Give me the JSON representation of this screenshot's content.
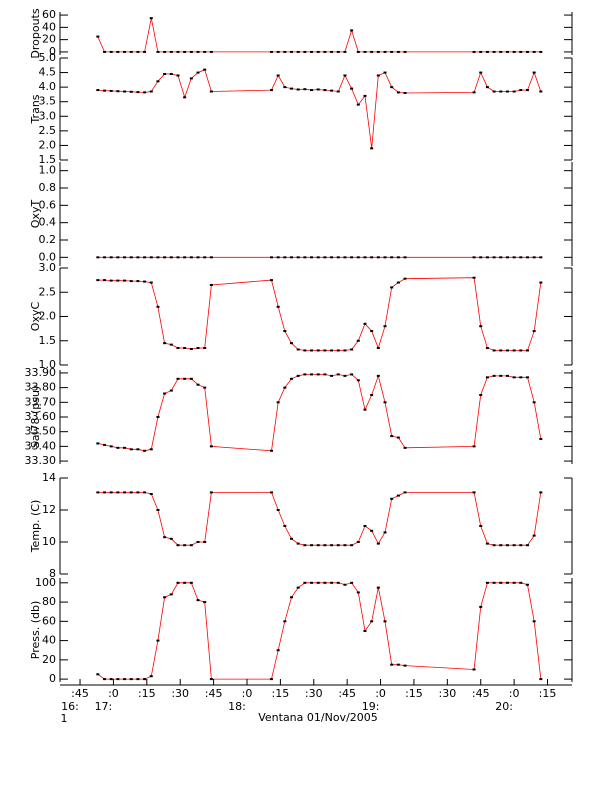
{
  "chart_data": {
    "type": "line",
    "line_color": "#ff0000",
    "point_color": "#000000",
    "xlabel": "Ventana 01/Nov/2005",
    "xlim": [
      36,
      266
    ],
    "xticks": [
      {
        "value": 45,
        "label": ":45"
      },
      {
        "value": 60,
        "label": ":0"
      },
      {
        "value": 75,
        "label": ":15"
      },
      {
        "value": 90,
        "label": ":30"
      },
      {
        "value": 105,
        "label": ":45"
      },
      {
        "value": 120,
        "label": ":0"
      },
      {
        "value": 135,
        "label": ":15"
      },
      {
        "value": 150,
        "label": ":30"
      },
      {
        "value": 165,
        "label": ":45"
      },
      {
        "value": 180,
        "label": ":0"
      },
      {
        "value": 195,
        "label": ":15"
      },
      {
        "value": 210,
        "label": ":30"
      },
      {
        "value": 225,
        "label": ":45"
      },
      {
        "value": 240,
        "label": ":0"
      },
      {
        "value": 255,
        "label": ":15"
      }
    ],
    "hour_labels": [
      {
        "value": 45,
        "label": "16:"
      },
      {
        "value": 60,
        "label": "17:"
      },
      {
        "value": 120,
        "label": "18:"
      },
      {
        "value": 180,
        "label": "19:"
      },
      {
        "value": 240,
        "label": "20:"
      }
    ],
    "day_label": {
      "value": 45,
      "label": "1"
    },
    "x": [
      53,
      56,
      59,
      62,
      65,
      68,
      71,
      74,
      77,
      80,
      83,
      86,
      89,
      92,
      95,
      98,
      101,
      104,
      131,
      134,
      137,
      140,
      143,
      146,
      149,
      152,
      155,
      158,
      161,
      164,
      167,
      170,
      173,
      176,
      179,
      182,
      185,
      188,
      191,
      222,
      225,
      228,
      231,
      234,
      237,
      240,
      243,
      246,
      249,
      252
    ],
    "panels": [
      {
        "ylabel": "Dropouts",
        "ylim": [
          -5,
          65
        ],
        "yticks": [
          0,
          20,
          40,
          60
        ],
        "values": [
          25,
          0,
          0,
          0,
          0,
          0,
          0,
          0,
          55,
          0,
          0,
          0,
          0,
          0,
          0,
          0,
          0,
          0,
          0,
          0,
          0,
          0,
          0,
          0,
          0,
          0,
          0,
          0,
          0,
          0,
          35,
          0,
          0,
          0,
          0,
          0,
          0,
          0,
          0,
          0,
          0,
          0,
          0,
          0,
          0,
          0,
          0,
          0,
          0,
          0
        ]
      },
      {
        "ylabel": "Trans",
        "ylim": [
          1.5,
          5.0
        ],
        "yticks": [
          1.5,
          {
            "value": 2,
            "label": "2.0"
          },
          2.5,
          {
            "value": 3,
            "label": "3.0"
          },
          3.5,
          {
            "value": 4,
            "label": "4.0"
          },
          4.5,
          {
            "value": 5,
            "label": "5.0"
          }
        ],
        "values": [
          3.9,
          3.88,
          3.87,
          3.86,
          3.85,
          3.84,
          3.83,
          3.82,
          3.85,
          4.2,
          4.45,
          4.45,
          4.4,
          3.65,
          4.3,
          4.5,
          4.6,
          3.85,
          3.9,
          4.4,
          4.0,
          3.95,
          3.92,
          3.93,
          3.9,
          3.92,
          3.9,
          3.88,
          3.85,
          4.4,
          3.95,
          3.4,
          3.7,
          1.9,
          4.4,
          4.5,
          4.0,
          3.82,
          3.8,
          3.82,
          4.5,
          4.0,
          3.85,
          3.85,
          3.85,
          3.85,
          3.9,
          3.9,
          4.5,
          3.85
        ]
      },
      {
        "ylabel": "OxyT",
        "ylim": [
          -0.1,
          1.1
        ],
        "yticks": [
          {
            "value": 0,
            "label": "0.0"
          },
          0.2,
          0.4,
          0.6,
          0.8,
          {
            "value": 1,
            "label": "1.0"
          }
        ],
        "values": [
          0,
          0,
          0,
          0,
          0,
          0,
          0,
          0,
          0,
          0,
          0,
          0,
          0,
          0,
          0,
          0,
          0,
          0,
          0,
          0,
          0,
          0,
          0,
          0,
          0,
          0,
          0,
          0,
          0,
          0,
          0,
          0,
          0,
          0,
          0,
          0,
          0,
          0,
          0,
          0,
          0,
          0,
          0,
          0,
          0,
          0,
          0,
          0,
          0,
          0
        ]
      },
      {
        "ylabel": "OxyC",
        "ylim": [
          1.0,
          3.0
        ],
        "yticks": [
          {
            "value": 1,
            "label": "1.0"
          },
          1.5,
          {
            "value": 2,
            "label": "2.0"
          },
          2.5,
          {
            "value": 3,
            "label": "3.0"
          }
        ],
        "values": [
          2.75,
          2.75,
          2.74,
          2.74,
          2.74,
          2.73,
          2.73,
          2.72,
          2.7,
          2.2,
          1.45,
          1.42,
          1.35,
          1.35,
          1.33,
          1.35,
          1.35,
          2.65,
          2.75,
          2.2,
          1.7,
          1.45,
          1.32,
          1.3,
          1.3,
          1.3,
          1.3,
          1.3,
          1.3,
          1.3,
          1.32,
          1.5,
          1.85,
          1.7,
          1.35,
          1.8,
          2.6,
          2.7,
          2.78,
          2.8,
          1.8,
          1.35,
          1.3,
          1.3,
          1.3,
          1.3,
          1.3,
          1.3,
          1.7,
          2.7
        ]
      },
      {
        "ylabel": "Sal78 (psu)",
        "ylim": [
          33.28,
          33.92
        ],
        "yticks": [
          {
            "value": 33.3,
            "label": "33.30"
          },
          {
            "value": 33.4,
            "label": "33.40"
          },
          {
            "value": 33.5,
            "label": "33.50"
          },
          {
            "value": 33.6,
            "label": "33.60"
          },
          {
            "value": 33.7,
            "label": "33.70"
          },
          {
            "value": 33.8,
            "label": "33.80"
          },
          {
            "value": 33.9,
            "label": "33.90"
          }
        ],
        "values": [
          33.42,
          33.41,
          33.4,
          33.39,
          33.39,
          33.38,
          33.38,
          33.37,
          33.38,
          33.6,
          33.76,
          33.78,
          33.86,
          33.86,
          33.86,
          33.82,
          33.8,
          33.4,
          33.37,
          33.7,
          33.8,
          33.86,
          33.88,
          33.89,
          33.89,
          33.89,
          33.89,
          33.88,
          33.89,
          33.88,
          33.89,
          33.85,
          33.65,
          33.75,
          33.88,
          33.7,
          33.47,
          33.46,
          33.39,
          33.4,
          33.75,
          33.87,
          33.88,
          33.88,
          33.88,
          33.87,
          33.87,
          33.87,
          33.7,
          33.45
        ]
      },
      {
        "ylabel": "Temp. (C)",
        "ylim": [
          8,
          14
        ],
        "yticks": [
          8,
          10,
          12,
          14
        ],
        "values": [
          13.1,
          13.1,
          13.1,
          13.1,
          13.1,
          13.1,
          13.1,
          13.1,
          13.0,
          12.0,
          10.3,
          10.2,
          9.8,
          9.8,
          9.8,
          10.0,
          10.0,
          13.1,
          13.1,
          12.0,
          11.0,
          10.2,
          9.9,
          9.8,
          9.8,
          9.8,
          9.8,
          9.8,
          9.8,
          9.8,
          9.8,
          10.0,
          11.0,
          10.7,
          9.9,
          10.6,
          12.7,
          12.9,
          13.1,
          13.1,
          11.0,
          9.9,
          9.8,
          9.8,
          9.8,
          9.8,
          9.8,
          9.8,
          10.4,
          13.1
        ]
      },
      {
        "ylabel": "Press. (db)",
        "ylim": [
          -3,
          105
        ],
        "yticks": [
          0,
          20,
          40,
          60,
          80,
          100
        ],
        "values": [
          5,
          0,
          0,
          0,
          0,
          0,
          0,
          0,
          3,
          40,
          85,
          88,
          100,
          100,
          100,
          82,
          80,
          0,
          0,
          30,
          60,
          85,
          95,
          100,
          100,
          100,
          100,
          100,
          100,
          98,
          100,
          90,
          50,
          60,
          95,
          60,
          15,
          15,
          14,
          10,
          75,
          100,
          100,
          100,
          100,
          100,
          100,
          98,
          60,
          0
        ]
      }
    ]
  }
}
